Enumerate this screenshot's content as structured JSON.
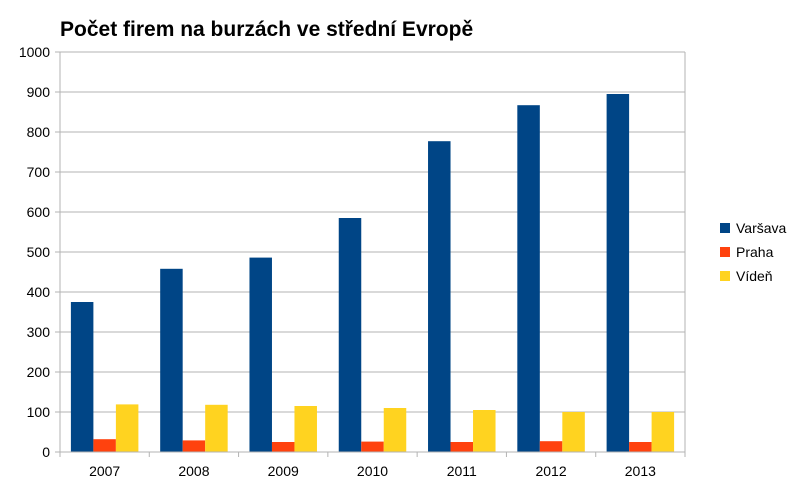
{
  "chart_data": {
    "type": "bar",
    "title": "Počet firem na burzách ve střední Evropě",
    "xlabel": "",
    "ylabel": "",
    "categories": [
      "2007",
      "2008",
      "2009",
      "2010",
      "2011",
      "2012",
      "2013"
    ],
    "series": [
      {
        "name": "Varšava",
        "color": "#004586",
        "values": [
          375,
          458,
          486,
          585,
          777,
          867,
          895
        ]
      },
      {
        "name": "Praha",
        "color": "#ff420e",
        "values": [
          32,
          29,
          25,
          26,
          25,
          27,
          25
        ]
      },
      {
        "name": "Vídeň",
        "color": "#ffd320",
        "values": [
          119,
          118,
          115,
          110,
          105,
          100,
          100
        ]
      }
    ],
    "ylim": [
      0,
      1000
    ],
    "yticks": [
      0,
      100,
      200,
      300,
      400,
      500,
      600,
      700,
      800,
      900,
      1000
    ],
    "grid": true,
    "legend_position": "right"
  }
}
